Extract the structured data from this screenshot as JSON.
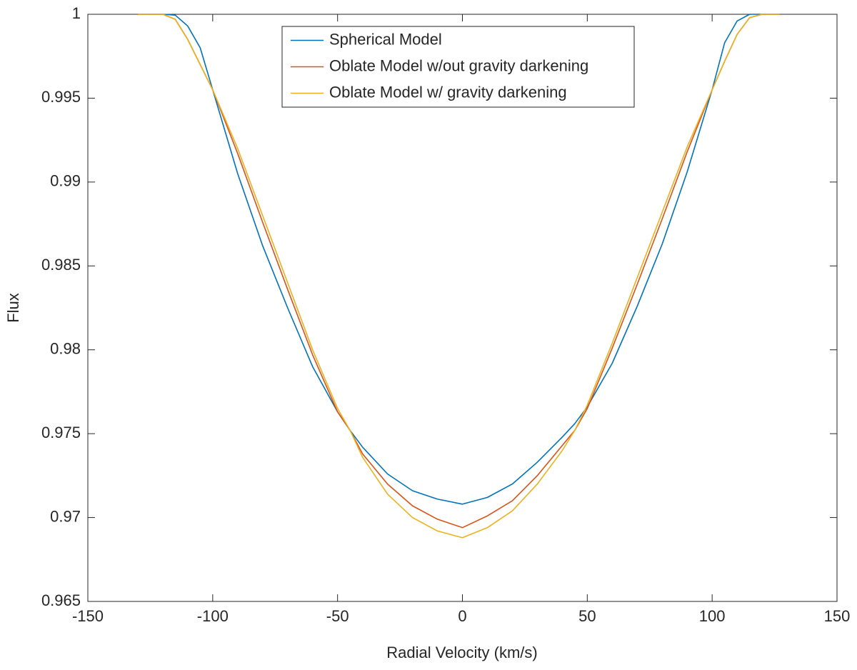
{
  "chart_data": {
    "type": "line",
    "xlabel": "Radial Velocity (km/s)",
    "ylabel": "Flux",
    "x": [
      -130,
      -120,
      -115,
      -110,
      -105,
      -100,
      -90,
      -80,
      -70,
      -60,
      -50,
      -45,
      -40,
      -30,
      -20,
      -10,
      0,
      10,
      20,
      30,
      40,
      45,
      50,
      60,
      70,
      80,
      90,
      100,
      105,
      110,
      115,
      120,
      127
    ],
    "series": [
      {
        "name": "Spherical Model",
        "color": "#0072BD",
        "values": [
          1,
          1,
          0.99995,
          0.9993,
          0.998,
          0.9955,
          0.9905,
          0.9862,
          0.9825,
          0.979,
          0.9763,
          0.9752,
          0.9742,
          0.9726,
          0.9716,
          0.9711,
          0.9708,
          0.9712,
          0.972,
          0.9733,
          0.9748,
          0.9756,
          0.9766,
          0.9792,
          0.9826,
          0.9863,
          0.9906,
          0.9955,
          0.9983,
          0.9996,
          1,
          1,
          1
        ]
      },
      {
        "name": "Oblate Model w/out gravity darkening",
        "color": "#D95319",
        "values": [
          1,
          1,
          0.9997,
          0.9985,
          0.997,
          0.9955,
          0.9917,
          0.9876,
          0.9836,
          0.9797,
          0.9763,
          0.9752,
          0.9738,
          0.972,
          0.9707,
          0.9699,
          0.9694,
          0.9701,
          0.971,
          0.9725,
          0.9743,
          0.9752,
          0.9765,
          0.9801,
          0.9839,
          0.9878,
          0.9918,
          0.9955,
          0.9972,
          0.9988,
          0.9998,
          1,
          1
        ]
      },
      {
        "name": "Oblate Model w/ gravity darkening",
        "color": "#EDB120",
        "values": [
          1,
          1,
          0.9997,
          0.9985,
          0.997,
          0.9955,
          0.992,
          0.988,
          0.984,
          0.98,
          0.9765,
          0.9752,
          0.9736,
          0.9714,
          0.97,
          0.9692,
          0.9688,
          0.9694,
          0.9704,
          0.972,
          0.974,
          0.9752,
          0.9767,
          0.9804,
          0.9843,
          0.9882,
          0.9921,
          0.9955,
          0.9972,
          0.9988,
          0.9998,
          1,
          1
        ]
      }
    ],
    "xlim": [
      -150,
      150
    ],
    "xticks": [
      -150,
      -100,
      -50,
      0,
      50,
      100,
      150
    ],
    "ylim": [
      0.965,
      1
    ],
    "yticks": [
      0.965,
      0.97,
      0.975,
      0.98,
      0.985,
      0.99,
      0.995,
      1
    ],
    "legend": "upper center",
    "grid": false
  }
}
